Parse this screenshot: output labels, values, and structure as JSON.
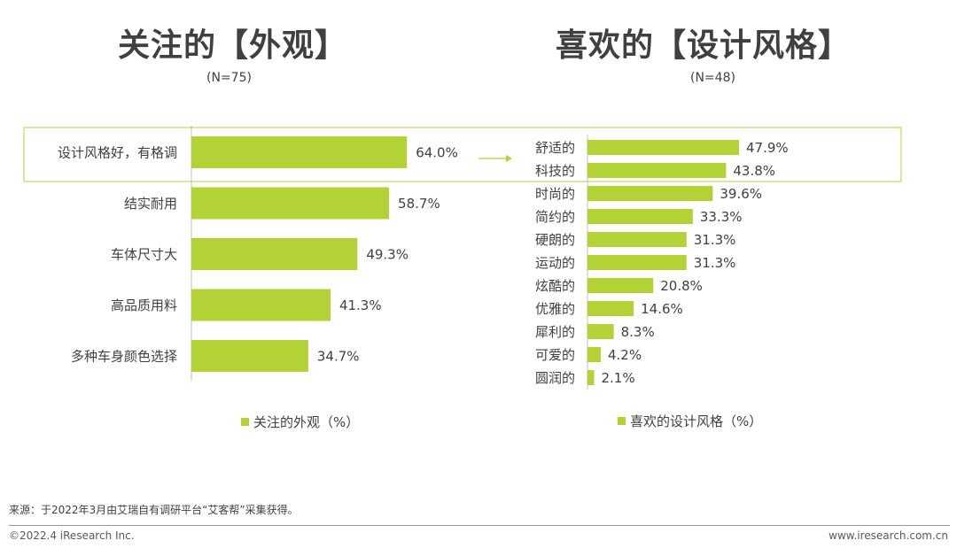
{
  "left": {
    "title": "关注的【外观】",
    "subtitle": "(N=75)",
    "legend": "关注的外观（%）"
  },
  "right": {
    "title": "喜欢的【设计风格】",
    "subtitle": "(N=48)",
    "legend": "喜欢的设计风格（%）"
  },
  "colors": {
    "bar": "#b2d235",
    "highlight": "#cde07f",
    "arrow": "#b2d235"
  },
  "chart_data": [
    {
      "type": "bar",
      "orientation": "horizontal",
      "title": "关注的【外观】",
      "series_name": "关注的外观（%）",
      "categories": [
        "设计风格好，有格调",
        "结实耐用",
        "车体尺寸大",
        "高品质用料",
        "多种车身颜色选择"
      ],
      "values": [
        64.0,
        58.7,
        49.3,
        41.3,
        34.7
      ],
      "value_labels": [
        "64.0%",
        "58.7%",
        "49.3%",
        "41.3%",
        "34.7%"
      ],
      "xlim": [
        0,
        100
      ]
    },
    {
      "type": "bar",
      "orientation": "horizontal",
      "title": "喜欢的【设计风格】",
      "series_name": "喜欢的设计风格（%）",
      "categories": [
        "舒适的",
        "科技的",
        "时尚的",
        "简约的",
        "硬朗的",
        "运动的",
        "炫酷的",
        "优雅的",
        "犀利的",
        "可爱的",
        "圆润的"
      ],
      "values": [
        47.9,
        43.8,
        39.6,
        33.3,
        31.3,
        31.3,
        20.8,
        14.6,
        8.3,
        4.2,
        2.1
      ],
      "value_labels": [
        "47.9%",
        "43.8%",
        "39.6%",
        "33.3%",
        "31.3%",
        "31.3%",
        "20.8%",
        "14.6%",
        "8.3%",
        "4.2%",
        "2.1%"
      ],
      "xlim": [
        0,
        100
      ]
    }
  ],
  "footer": {
    "source": "来源：于2022年3月由艾瑞自有调研平台“艾客帮”采集获得。",
    "copyright": "©2022.4 iResearch Inc.",
    "website": "www.iresearch.com.cn"
  }
}
